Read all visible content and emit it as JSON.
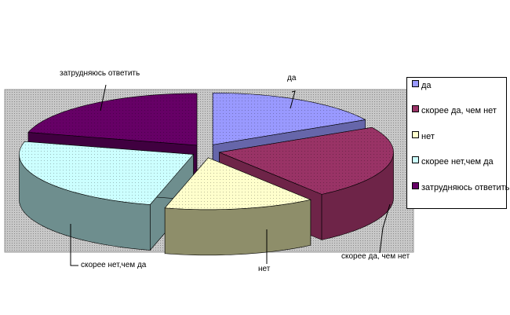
{
  "chart_data": {
    "type": "pie",
    "style": "3d-exploded",
    "title": "",
    "categories": [
      "да",
      "скорее да, чем нет",
      "нет",
      "скорее нет,чем да",
      "затрудняюсь ответить"
    ],
    "values": [
      17,
      23,
      14,
      25,
      21
    ],
    "value_unit": "percent (estimated)",
    "data_labels": [
      "да",
      "скорее да, чем нет",
      "нет",
      "скорее нет,чем да",
      "затрудняюсь ответить"
    ],
    "colors": [
      "#9999FF",
      "#993366",
      "#FFFFCC",
      "#CCFFFF",
      "#660066"
    ],
    "side_colors": [
      "#6666AA",
      "#6E2448",
      "#8E8E6A",
      "#6E8E8E",
      "#400040"
    ],
    "plot_background": "#C0C0C0",
    "legend": {
      "placement": "right",
      "entries": [
        "да",
        "скорее да, чем нет",
        "нет",
        "скорее нет,чем да",
        "затрудняюсь ответить"
      ]
    }
  }
}
